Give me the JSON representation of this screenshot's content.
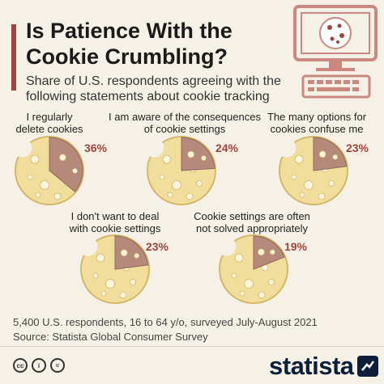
{
  "header": {
    "title": "Is Patience With the Cookie Crumbling?",
    "subtitle": "Share of U.S. respondents agreeing with the following statements about cookie tracking"
  },
  "chart_data": {
    "type": "pie",
    "categories": [
      "I regularly delete cookies",
      "I am aware of the consequences of cookie settings",
      "The many options for cookies confuse me",
      "I don't want to deal with cookie settings",
      "Cookie settings are often not solved appropriately"
    ],
    "values": [
      36,
      24,
      23,
      23,
      19
    ],
    "labels": [
      "36%",
      "24%",
      "23%",
      "23%",
      "19%"
    ],
    "label_lines": [
      [
        "I regularly",
        "delete cookies"
      ],
      [
        "I am aware of the consequences",
        "of cookie settings"
      ],
      [
        "The many options for",
        "cookies confuse me"
      ],
      [
        "I don't want to deal",
        "with cookie settings"
      ],
      [
        "Cookie settings are often",
        "not solved appropriately"
      ]
    ],
    "unit": "%",
    "colors": {
      "cookie": "#f1de9c",
      "cookie_edge": "#d4b768",
      "chip": "#fbf5dc",
      "slice": "#b68a7a",
      "value_label": "#a0433b"
    }
  },
  "footnote": {
    "line1": "5,400 U.S. respondents, 16 to 64 y/o, surveyed July-August 2021",
    "line2": "Source: Statista Global Consumer Survey"
  },
  "footer": {
    "brand": "statista",
    "license_icons": [
      "cc",
      "i",
      "="
    ]
  },
  "icons": [
    "computer-icon",
    "cookie-icon",
    "keyboard-icon",
    "creative-commons-icon",
    "attribution-icon",
    "no-derivatives-icon",
    "statista-logo-icon"
  ]
}
